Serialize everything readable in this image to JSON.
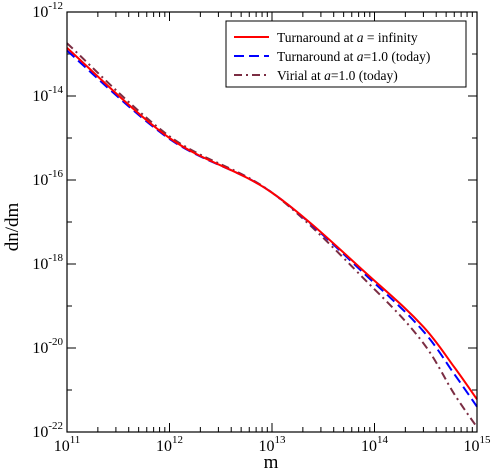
{
  "chart_data": {
    "type": "line",
    "xlabel": "m",
    "ylabel": "dn/dm",
    "x_scale": "log",
    "y_scale": "log",
    "xlim": [
      100000000000.0,
      1000000000000000.0
    ],
    "ylim": [
      1e-22,
      1e-12
    ],
    "grid": false,
    "legend_position": "top-right",
    "x_ticks": [
      {
        "base": "10",
        "exp": "11",
        "value": 100000000000.0
      },
      {
        "base": "10",
        "exp": "12",
        "value": 1000000000000.0
      },
      {
        "base": "10",
        "exp": "13",
        "value": 10000000000000.0
      },
      {
        "base": "10",
        "exp": "14",
        "value": 100000000000000.0
      },
      {
        "base": "10",
        "exp": "15",
        "value": 1000000000000000.0
      }
    ],
    "y_ticks": [
      {
        "base": "10",
        "exp": "-12",
        "value": 1e-12
      },
      {
        "base": "10",
        "exp": "-14",
        "value": 1e-14
      },
      {
        "base": "10",
        "exp": "-16",
        "value": 1e-16
      },
      {
        "base": "10",
        "exp": "-18",
        "value": 1e-18
      },
      {
        "base": "10",
        "exp": "-20",
        "value": 1e-20
      },
      {
        "base": "10",
        "exp": "-22",
        "value": 1e-22
      }
    ],
    "series": [
      {
        "name_parts": [
          "Turnaround at ",
          "a",
          " = infinity"
        ],
        "color": "#ff0000",
        "dash": "solid",
        "x": [
          100000000000.0,
          1000000000000.0,
          10000000000000.0,
          100000000000000.0,
          300000000000000.0,
          600000000000000.0,
          1000000000000000.0
        ],
        "y": [
          1.4e-13,
          1e-15,
          5e-17,
          4e-19,
          3.2e-20,
          3.5e-21,
          6e-22
        ]
      },
      {
        "name_parts": [
          "Turnaround at ",
          "a",
          "=1.0 (today)"
        ],
        "color": "#0000ff",
        "dash": "dashed",
        "x": [
          100000000000.0,
          1000000000000.0,
          10000000000000.0,
          100000000000000.0,
          300000000000000.0,
          600000000000000.0,
          1000000000000000.0
        ],
        "y": [
          1.2e-13,
          9.5e-16,
          5e-17,
          3.5e-19,
          2.5e-20,
          2.4e-21,
          4e-22
        ]
      },
      {
        "name_parts": [
          "Virial at ",
          "a",
          "=1.0 (today)"
        ],
        "color": "#7b2d43",
        "dash": "dash-dot",
        "x": [
          100000000000.0,
          1000000000000.0,
          10000000000000.0,
          100000000000000.0,
          300000000000000.0,
          600000000000000.0,
          1000000000000000.0
        ],
        "y": [
          1.8e-13,
          1.1e-15,
          5e-17,
          2.5e-19,
          1.3e-20,
          8e-22,
          1.3e-22
        ]
      }
    ]
  }
}
